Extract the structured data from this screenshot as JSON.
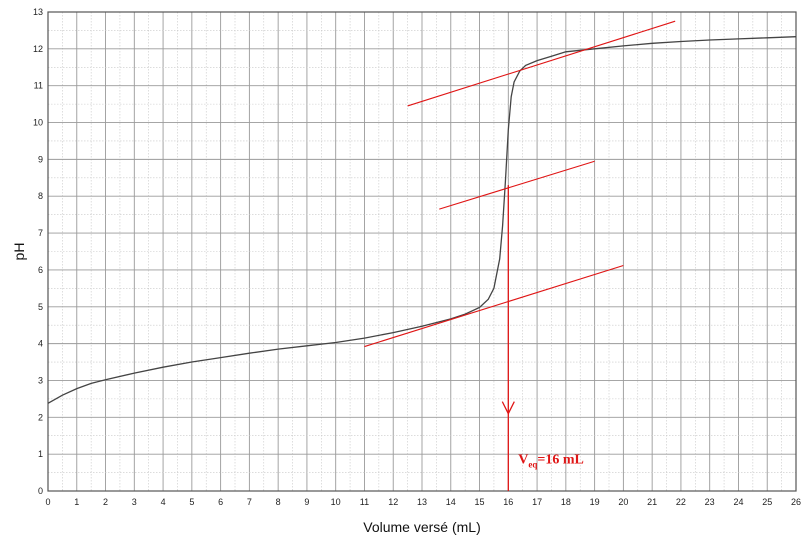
{
  "chart_data": {
    "type": "line",
    "xlabel": "Volume versé (mL)",
    "ylabel": "pH",
    "xlim": [
      0,
      26
    ],
    "ylim": [
      0,
      13
    ],
    "grid": true,
    "x_ticks": [
      "0",
      "1",
      "2",
      "3",
      "4",
      "5",
      "6",
      "7",
      "8",
      "9",
      "10",
      "11",
      "12",
      "13",
      "14",
      "15",
      "16",
      "17",
      "18",
      "19",
      "20",
      "21",
      "22",
      "23",
      "24",
      "25",
      "26"
    ],
    "y_ticks": [
      "0",
      "1",
      "2",
      "3",
      "4",
      "5",
      "6",
      "7",
      "8",
      "9",
      "10",
      "11",
      "12",
      "13"
    ],
    "series": [
      {
        "color": "#444444",
        "x": [
          0,
          0.5,
          1,
          1.5,
          2,
          3,
          4,
          5,
          6,
          7,
          8,
          9,
          10,
          11,
          12,
          13,
          14,
          14.5,
          15,
          15.3,
          15.5,
          15.7,
          15.8,
          15.9,
          16.0,
          16.1,
          16.2,
          16.4,
          16.6,
          17,
          17.5,
          18,
          19,
          20,
          21,
          22,
          23,
          24,
          25,
          26
        ],
        "y": [
          2.38,
          2.6,
          2.78,
          2.92,
          3.02,
          3.2,
          3.36,
          3.5,
          3.62,
          3.74,
          3.85,
          3.94,
          4.03,
          4.15,
          4.3,
          4.47,
          4.67,
          4.8,
          4.98,
          5.2,
          5.5,
          6.3,
          7.2,
          8.4,
          9.8,
          10.7,
          11.1,
          11.4,
          11.55,
          11.68,
          11.8,
          11.92,
          12.0,
          12.08,
          12.15,
          12.2,
          12.24,
          12.27,
          12.3,
          12.33
        ]
      }
    ],
    "annotations": {
      "color": "#e01515",
      "tangent_lines": [
        {
          "x": [
            11,
            20
          ],
          "y": [
            3.92,
            6.12
          ]
        },
        {
          "x": [
            13.6,
            19
          ],
          "y": [
            7.65,
            8.95
          ]
        },
        {
          "x": [
            12.5,
            21.8
          ],
          "y": [
            10.45,
            12.75
          ]
        }
      ],
      "equivalence_line": {
        "x": 16,
        "y_top": 8.3,
        "y_bottom": 0,
        "arrow_y": 2.1
      },
      "veq_label": {
        "main": "V",
        "sub": "eq",
        "rest": "=16 mL"
      }
    }
  }
}
